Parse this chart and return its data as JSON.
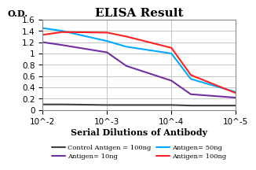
{
  "title": "ELISA Result",
  "xlabel": "Serial Dilutions of Antibody",
  "ylabel": "O.D.",
  "ylim": [
    0,
    1.6
  ],
  "yticks": [
    0,
    0.2,
    0.4,
    0.6,
    0.8,
    1.0,
    1.2,
    1.4,
    1.6
  ],
  "xticks": [
    0.01,
    0.001,
    0.0001,
    1e-05
  ],
  "lines": [
    {
      "label": "Control Antigen = 100ng",
      "color": "#404040",
      "x": [
        0.01,
        0.005,
        0.001,
        0.0005,
        0.0001,
        5e-05,
        1e-05
      ],
      "y": [
        0.1,
        0.1,
        0.09,
        0.09,
        0.09,
        0.08,
        0.08
      ]
    },
    {
      "label": "Antigen= 10ng",
      "color": "#7030a0",
      "x": [
        0.01,
        0.005,
        0.001,
        0.0005,
        0.0001,
        5e-05,
        1e-05
      ],
      "y": [
        1.2,
        1.15,
        1.02,
        0.78,
        0.52,
        0.28,
        0.22
      ]
    },
    {
      "label": "Antigen= 50ng",
      "color": "#00aaff",
      "x": [
        0.01,
        0.005,
        0.001,
        0.0005,
        0.0001,
        5e-05,
        1e-05
      ],
      "y": [
        1.45,
        1.4,
        1.22,
        1.12,
        1.0,
        0.55,
        0.32
      ]
    },
    {
      "label": "Antigen= 100ng",
      "color": "#ff2020",
      "x": [
        0.01,
        0.005,
        0.001,
        0.0005,
        0.0001,
        5e-05,
        1e-05
      ],
      "y": [
        1.33,
        1.38,
        1.37,
        1.3,
        1.1,
        0.62,
        0.3
      ]
    }
  ],
  "legend_ncol": 2,
  "background_color": "#ffffff",
  "grid_color": "#bbbbbb",
  "title_fontsize": 11,
  "label_fontsize": 8,
  "tick_fontsize": 7.5,
  "legend_fontsize": 6.0,
  "line_width": 1.5
}
